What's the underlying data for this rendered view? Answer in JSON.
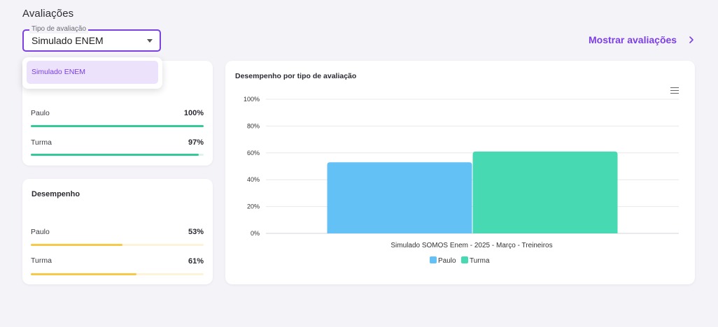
{
  "page": {
    "title": "Avaliações"
  },
  "filter": {
    "label": "Tipo de avaliação",
    "value": "Simulado ENEM",
    "options": [
      "Simulado ENEM"
    ]
  },
  "show_link": {
    "label": "Mostrar avaliações",
    "icon": "chevron-right-icon"
  },
  "participacao": {
    "rows": [
      {
        "name": "Paulo",
        "value": "100%",
        "fraction": 1.0
      },
      {
        "name": "Turma",
        "value": "97%",
        "fraction": 0.97
      }
    ],
    "color": "#35c99a",
    "track_color": "#d9f5ec"
  },
  "desempenho": {
    "title": "Desempenho",
    "rows": [
      {
        "name": "Paulo",
        "value": "53%",
        "fraction": 0.53
      },
      {
        "name": "Turma",
        "value": "61%",
        "fraction": 0.61
      }
    ],
    "color": "#f7c948",
    "track_color": "#fdf3d8"
  },
  "chart_panel": {
    "title": "Desempenho por tipo de avaliação",
    "menu_icon": "hamburger-menu-icon"
  },
  "chart_data": {
    "type": "bar",
    "title": "Desempenho por tipo de avaliação",
    "categories": [
      "Simulado SOMOS Enem - 2025 - Março - Treineiros"
    ],
    "series": [
      {
        "name": "Paulo",
        "values": [
          53
        ],
        "color": "#63c1f5"
      },
      {
        "name": "Turma",
        "values": [
          61
        ],
        "color": "#47d9b1"
      }
    ],
    "ylim": [
      0,
      100
    ],
    "yticks": [
      "0%",
      "20%",
      "40%",
      "60%",
      "80%",
      "100%"
    ],
    "grid": true,
    "legend": "bottom-center"
  }
}
